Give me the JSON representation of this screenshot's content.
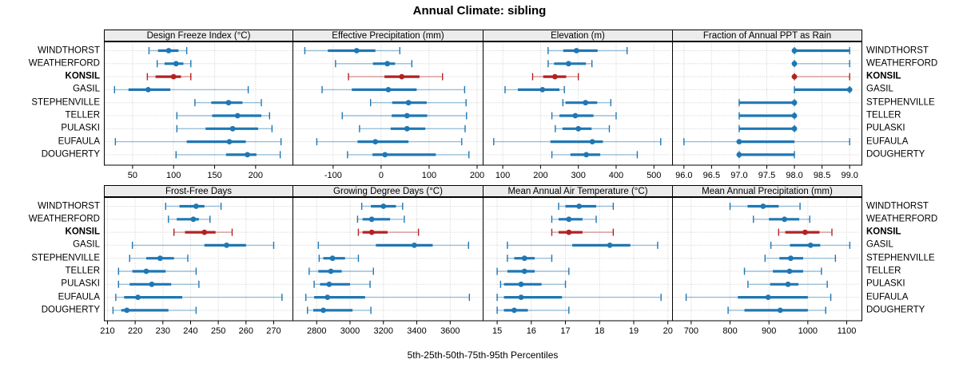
{
  "title": "Annual Climate: sibling",
  "footer": "5th-25th-50th-75th-95th Percentiles",
  "rows": [
    "WINDTHORST",
    "WEATHERFORD",
    "KONSIL",
    "GASIL",
    "STEPHENVILLE",
    "TELLER",
    "PULASKI",
    "EUFAULA",
    "DOUGHERTY"
  ],
  "highlight_row": "KONSIL",
  "colors": {
    "blue": "#1f77b4",
    "blue_light": "rgba(31,119,180,0.42)",
    "red": "#b22222",
    "red_light": "rgba(178,34,34,0.45)",
    "grid": "#c8c8c8",
    "strip_bg": "#ececec",
    "border": "#000000"
  },
  "chart_data": {
    "type": "errorbar-dotplot",
    "percentiles": [
      5,
      25,
      50,
      75,
      95
    ],
    "layout": "2 rows x 4 cols of panels, shared row categories, grid dotted, ticks bottom",
    "panels": [
      {
        "title": "Design Freeze Index (°C)",
        "xlim": [
          16,
          244
        ],
        "ticks": [
          50,
          100,
          150,
          200
        ],
        "tick_labels": [
          "50",
          "100",
          "150",
          "200"
        ],
        "series": [
          [
            70,
            81,
            94,
            106,
            116
          ],
          [
            80,
            89,
            103,
            112,
            121
          ],
          [
            68,
            78,
            100,
            109,
            121
          ],
          [
            28,
            45,
            69,
            96,
            191
          ],
          [
            126,
            146,
            167,
            184,
            207
          ],
          [
            104,
            147,
            178,
            207,
            217
          ],
          [
            104,
            139,
            172,
            203,
            220
          ],
          [
            29,
            116,
            168,
            188,
            231
          ],
          [
            103,
            164,
            190,
            201,
            230
          ]
        ]
      },
      {
        "title": "Effective Precipitation (mm)",
        "xlim": [
          -183,
          210
        ],
        "ticks": [
          -100,
          0,
          100,
          200
        ],
        "tick_labels": [
          "-100",
          "0",
          "100",
          "200"
        ],
        "series": [
          [
            -159,
            -111,
            -51,
            -12,
            39
          ],
          [
            -95,
            -17,
            13,
            29,
            64
          ],
          [
            -68,
            7,
            43,
            80,
            128
          ],
          [
            -123,
            -61,
            15,
            74,
            174
          ],
          [
            -22,
            23,
            57,
            95,
            177
          ],
          [
            -81,
            22,
            54,
            96,
            178
          ],
          [
            -45,
            20,
            54,
            92,
            175
          ],
          [
            -134,
            -49,
            -12,
            57,
            168
          ],
          [
            -70,
            -18,
            8,
            114,
            183
          ]
        ]
      },
      {
        "title": "Elevation (m)",
        "xlim": [
          49,
          546
        ],
        "ticks": [
          100,
          200,
          300,
          400,
          500
        ],
        "tick_labels": [
          "100",
          "200",
          "300",
          "400",
          "500"
        ],
        "series": [
          [
            220,
            260,
            295,
            351,
            429
          ],
          [
            220,
            236,
            274,
            320,
            336
          ],
          [
            179,
            207,
            238,
            268,
            300
          ],
          [
            106,
            140,
            205,
            250,
            263
          ],
          [
            259,
            266,
            319,
            350,
            386
          ],
          [
            230,
            250,
            292,
            340,
            400
          ],
          [
            239,
            258,
            300,
            335,
            382
          ],
          [
            76,
            226,
            337,
            365,
            518
          ],
          [
            230,
            279,
            321,
            358,
            456
          ]
        ]
      },
      {
        "title": "Fraction of Annual PPT as Rain",
        "xlim": [
          95.8,
          99.2
        ],
        "ticks": [
          96.0,
          96.5,
          97.0,
          97.5,
          98.0,
          98.5,
          99.0
        ],
        "tick_labels": [
          "96.0",
          "96.5",
          "97.0",
          "97.5",
          "98.0",
          "98.5",
          "99.0"
        ],
        "series": [
          [
            98,
            98,
            98,
            99,
            99
          ],
          [
            98,
            98,
            98,
            98,
            99
          ],
          [
            98,
            98,
            98,
            98,
            99
          ],
          [
            98,
            98,
            99,
            99,
            99
          ],
          [
            97,
            97,
            98,
            98,
            98
          ],
          [
            97,
            97,
            98,
            98,
            98
          ],
          [
            97,
            97,
            98,
            98,
            98
          ],
          [
            96,
            97,
            97,
            98,
            99
          ],
          [
            97,
            97,
            97,
            98,
            98
          ]
        ]
      },
      {
        "title": "Frost-Free Days",
        "xlim": [
          209,
          276.5
        ],
        "ticks": [
          210,
          220,
          230,
          240,
          250,
          260,
          270
        ],
        "tick_labels": [
          "210",
          "220",
          "230",
          "240",
          "250",
          "260",
          "270"
        ],
        "series": [
          [
            231,
            236,
            242,
            245,
            251
          ],
          [
            232,
            235,
            241,
            243,
            247
          ],
          [
            234,
            238,
            245,
            249,
            255
          ],
          [
            219,
            245,
            253,
            260,
            270
          ],
          [
            218,
            224,
            229,
            234,
            239
          ],
          [
            214,
            219,
            224,
            231,
            242
          ],
          [
            214,
            218,
            226,
            233,
            243
          ],
          [
            213,
            216,
            221,
            237,
            273
          ],
          [
            212,
            215,
            217,
            232,
            242
          ]
        ]
      },
      {
        "title": "Growing Degree Days (°C)",
        "xlim": [
          2660,
          3790
        ],
        "ticks": [
          2800,
          3000,
          3200,
          3400,
          3600
        ],
        "tick_labels": [
          "2800",
          "3000",
          "3200",
          "3400",
          "3600"
        ],
        "series": [
          [
            3070,
            3125,
            3200,
            3275,
            3315
          ],
          [
            3045,
            3075,
            3130,
            3240,
            3325
          ],
          [
            3050,
            3075,
            3130,
            3225,
            3410
          ],
          [
            2810,
            3155,
            3385,
            3495,
            3710
          ],
          [
            2815,
            2840,
            2895,
            2970,
            3050
          ],
          [
            2755,
            2810,
            2885,
            2950,
            3140
          ],
          [
            2785,
            2820,
            2875,
            3000,
            3120
          ],
          [
            2735,
            2785,
            2865,
            3090,
            3715
          ],
          [
            2745,
            2780,
            2840,
            3015,
            3125
          ]
        ]
      },
      {
        "title": "Mean Annual Air Temperature (°C)",
        "xlim": [
          14.6,
          20.1
        ],
        "ticks": [
          15,
          16,
          17,
          18,
          19,
          20
        ],
        "tick_labels": [
          "15",
          "16",
          "17",
          "18",
          "19",
          "20"
        ],
        "series": [
          [
            16.8,
            17.0,
            17.4,
            17.9,
            18.4
          ],
          [
            16.6,
            16.8,
            17.1,
            17.5,
            17.9
          ],
          [
            16.6,
            16.8,
            17.1,
            17.5,
            18.4
          ],
          [
            15.3,
            17.2,
            18.3,
            18.9,
            19.7
          ],
          [
            15.3,
            15.5,
            15.8,
            16.1,
            16.6
          ],
          [
            15.0,
            15.3,
            15.8,
            16.1,
            17.1
          ],
          [
            15.1,
            15.2,
            15.7,
            16.3,
            17.0
          ],
          [
            15.0,
            15.2,
            15.7,
            16.9,
            19.8
          ],
          [
            15.0,
            15.2,
            15.5,
            15.9,
            17.1
          ]
        ]
      },
      {
        "title": "Mean Annual Precipitation (mm)",
        "xlim": [
          653,
          1136
        ],
        "ticks": [
          700,
          800,
          900,
          1000,
          1100
        ],
        "tick_labels": [
          "700",
          "800",
          "900",
          "1000",
          "1100"
        ],
        "series": [
          [
            800,
            845,
            885,
            925,
            980
          ],
          [
            860,
            900,
            940,
            978,
            1005
          ],
          [
            925,
            942,
            993,
            1030,
            1062
          ],
          [
            905,
            954,
            1007,
            1032,
            1108
          ],
          [
            890,
            927,
            956,
            988,
            1071
          ],
          [
            837,
            910,
            953,
            988,
            1035
          ],
          [
            846,
            903,
            949,
            976,
            1050
          ],
          [
            687,
            820,
            898,
            1000,
            1059
          ],
          [
            795,
            837,
            929,
            1000,
            1046
          ]
        ]
      }
    ]
  }
}
